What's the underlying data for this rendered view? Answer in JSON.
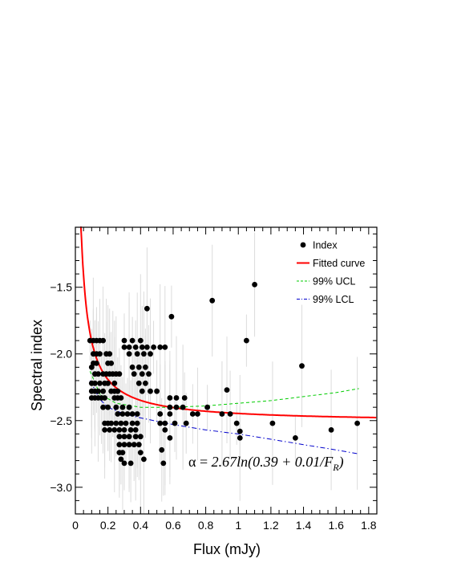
{
  "chart_data": {
    "type": "scatter",
    "xlabel": "Flux (mJy)",
    "ylabel": "Spectral index",
    "xlim": [
      0,
      1.85
    ],
    "ylim": [
      -3.2,
      -1.05
    ],
    "x_ticks": [
      0,
      0.2,
      0.4,
      0.6,
      0.8,
      1,
      1.2,
      1.4,
      1.6,
      1.8
    ],
    "x_tick_labels": [
      "0",
      "0.2",
      "0.4",
      "0.6",
      "0.8",
      "1",
      "1.2",
      "1.4",
      "1.6",
      "1.8"
    ],
    "y_ticks": [
      -3.0,
      -2.5,
      -2.0,
      -1.5
    ],
    "y_tick_labels": [
      "−3.0",
      "−2.5",
      "−2.0",
      "−1.5"
    ],
    "legend_position": "top-right",
    "legend": [
      {
        "label": "Index",
        "style": "marker",
        "color": "#000000"
      },
      {
        "label": "Fitted curve",
        "style": "solid",
        "color": "#ff0000"
      },
      {
        "label": "99% UCL",
        "style": "dashed",
        "color": "#00cc00"
      },
      {
        "label": "99% LCL",
        "style": "dashdot",
        "color": "#0000cc"
      }
    ],
    "annotation": {
      "alpha": "α",
      "equals": " = ",
      "body": "2.67ln(0.39 + 0.01/F",
      "subscript": "R",
      "close": ")"
    },
    "fit": {
      "a": 2.67,
      "b": 0.39,
      "c": 0.01
    },
    "ucl": [
      [
        0.09,
        -2.13
      ],
      [
        0.15,
        -2.3
      ],
      [
        0.25,
        -2.37
      ],
      [
        0.4,
        -2.4
      ],
      [
        0.6,
        -2.4
      ],
      [
        0.8,
        -2.39
      ],
      [
        1.0,
        -2.37
      ],
      [
        1.2,
        -2.35
      ],
      [
        1.4,
        -2.32
      ],
      [
        1.6,
        -2.29
      ],
      [
        1.74,
        -2.26
      ]
    ],
    "lcl": [
      [
        0.09,
        -2.2
      ],
      [
        0.15,
        -2.34
      ],
      [
        0.2,
        -2.4
      ],
      [
        0.3,
        -2.45
      ],
      [
        0.4,
        -2.48
      ],
      [
        0.6,
        -2.53
      ],
      [
        0.8,
        -2.57
      ],
      [
        1.0,
        -2.6
      ],
      [
        1.2,
        -2.64
      ],
      [
        1.4,
        -2.68
      ],
      [
        1.6,
        -2.72
      ],
      [
        1.74,
        -2.75
      ]
    ],
    "series": [
      {
        "name": "Index",
        "points": [
          [
            0.09,
            -1.9
          ],
          [
            0.11,
            -1.9
          ],
          [
            0.13,
            -1.9
          ],
          [
            0.15,
            -1.9
          ],
          [
            0.17,
            -1.9
          ],
          [
            0.11,
            -2.0
          ],
          [
            0.13,
            -2.0
          ],
          [
            0.15,
            -2.0
          ],
          [
            0.19,
            -2.0
          ],
          [
            0.21,
            -2.0
          ],
          [
            0.11,
            -2.07
          ],
          [
            0.13,
            -2.07
          ],
          [
            0.2,
            -2.07
          ],
          [
            0.22,
            -2.07
          ],
          [
            0.1,
            -2.1
          ],
          [
            0.12,
            -2.15
          ],
          [
            0.14,
            -2.15
          ],
          [
            0.17,
            -2.15
          ],
          [
            0.19,
            -2.15
          ],
          [
            0.21,
            -2.15
          ],
          [
            0.23,
            -2.15
          ],
          [
            0.25,
            -2.15
          ],
          [
            0.27,
            -2.15
          ],
          [
            0.1,
            -2.22
          ],
          [
            0.12,
            -2.22
          ],
          [
            0.15,
            -2.22
          ],
          [
            0.18,
            -2.22
          ],
          [
            0.2,
            -2.22
          ],
          [
            0.24,
            -2.22
          ],
          [
            0.1,
            -2.28
          ],
          [
            0.12,
            -2.28
          ],
          [
            0.14,
            -2.28
          ],
          [
            0.17,
            -2.28
          ],
          [
            0.22,
            -2.28
          ],
          [
            0.24,
            -2.28
          ],
          [
            0.26,
            -2.28
          ],
          [
            0.1,
            -2.33
          ],
          [
            0.12,
            -2.33
          ],
          [
            0.14,
            -2.33
          ],
          [
            0.16,
            -2.33
          ],
          [
            0.18,
            -2.33
          ],
          [
            0.24,
            -2.33
          ],
          [
            0.26,
            -2.33
          ],
          [
            0.28,
            -2.33
          ],
          [
            0.17,
            -2.4
          ],
          [
            0.2,
            -2.4
          ],
          [
            0.25,
            -2.4
          ],
          [
            0.29,
            -2.4
          ],
          [
            0.33,
            -2.4
          ],
          [
            0.26,
            -2.45
          ],
          [
            0.29,
            -2.45
          ],
          [
            0.32,
            -2.45
          ],
          [
            0.35,
            -2.45
          ],
          [
            0.38,
            -2.45
          ],
          [
            0.18,
            -2.52
          ],
          [
            0.2,
            -2.52
          ],
          [
            0.22,
            -2.52
          ],
          [
            0.25,
            -2.52
          ],
          [
            0.28,
            -2.52
          ],
          [
            0.31,
            -2.52
          ],
          [
            0.35,
            -2.52
          ],
          [
            0.38,
            -2.52
          ],
          [
            0.18,
            -2.57
          ],
          [
            0.21,
            -2.57
          ],
          [
            0.24,
            -2.57
          ],
          [
            0.27,
            -2.57
          ],
          [
            0.3,
            -2.57
          ],
          [
            0.34,
            -2.57
          ],
          [
            0.37,
            -2.57
          ],
          [
            0.27,
            -2.62
          ],
          [
            0.3,
            -2.62
          ],
          [
            0.33,
            -2.62
          ],
          [
            0.37,
            -2.62
          ],
          [
            0.4,
            -2.62
          ],
          [
            0.27,
            -2.68
          ],
          [
            0.3,
            -2.68
          ],
          [
            0.33,
            -2.68
          ],
          [
            0.36,
            -2.68
          ],
          [
            0.39,
            -2.68
          ],
          [
            0.27,
            -2.74
          ],
          [
            0.29,
            -2.74
          ],
          [
            0.4,
            -2.74
          ],
          [
            0.28,
            -2.79
          ],
          [
            0.42,
            -2.79
          ],
          [
            0.3,
            -2.82
          ],
          [
            0.34,
            -2.82
          ],
          [
            0.3,
            -1.9
          ],
          [
            0.35,
            -1.9
          ],
          [
            0.4,
            -1.9
          ],
          [
            0.3,
            -1.95
          ],
          [
            0.33,
            -1.95
          ],
          [
            0.37,
            -1.95
          ],
          [
            0.41,
            -1.95
          ],
          [
            0.44,
            -1.95
          ],
          [
            0.48,
            -1.95
          ],
          [
            0.52,
            -1.95
          ],
          [
            0.55,
            -1.95
          ],
          [
            0.33,
            -2.0
          ],
          [
            0.38,
            -2.0
          ],
          [
            0.42,
            -2.0
          ],
          [
            0.46,
            -2.0
          ],
          [
            0.35,
            -2.1
          ],
          [
            0.39,
            -2.1
          ],
          [
            0.43,
            -2.1
          ],
          [
            0.36,
            -2.15
          ],
          [
            0.41,
            -2.15
          ],
          [
            0.45,
            -2.15
          ],
          [
            0.39,
            -2.22
          ],
          [
            0.43,
            -2.22
          ],
          [
            0.41,
            -2.28
          ],
          [
            0.46,
            -2.28
          ],
          [
            0.5,
            -2.28
          ],
          [
            0.44,
            -1.66
          ],
          [
            0.59,
            -1.72
          ],
          [
            0.58,
            -2.33
          ],
          [
            0.62,
            -2.33
          ],
          [
            0.67,
            -2.33
          ],
          [
            0.58,
            -2.4
          ],
          [
            0.62,
            -2.4
          ],
          [
            0.66,
            -2.4
          ],
          [
            0.52,
            -2.45
          ],
          [
            0.58,
            -2.45
          ],
          [
            0.52,
            -2.52
          ],
          [
            0.55,
            -2.52
          ],
          [
            0.61,
            -2.52
          ],
          [
            0.55,
            -2.57
          ],
          [
            0.58,
            -2.63
          ],
          [
            0.53,
            -2.72
          ],
          [
            0.54,
            -2.82
          ],
          [
            0.68,
            -2.52
          ],
          [
            0.72,
            -2.45
          ],
          [
            0.75,
            -2.45
          ],
          [
            0.81,
            -2.4
          ],
          [
            0.84,
            -1.6
          ],
          [
            0.9,
            -2.45
          ],
          [
            0.93,
            -2.27
          ],
          [
            0.95,
            -2.45
          ],
          [
            0.99,
            -2.52
          ],
          [
            1.01,
            -2.58
          ],
          [
            1.01,
            -2.63
          ],
          [
            1.05,
            -1.9
          ],
          [
            1.1,
            -1.48
          ],
          [
            1.21,
            -2.52
          ],
          [
            1.35,
            -2.63
          ],
          [
            1.39,
            -2.09
          ],
          [
            1.57,
            -2.57
          ],
          [
            1.73,
            -2.52
          ]
        ]
      }
    ]
  }
}
